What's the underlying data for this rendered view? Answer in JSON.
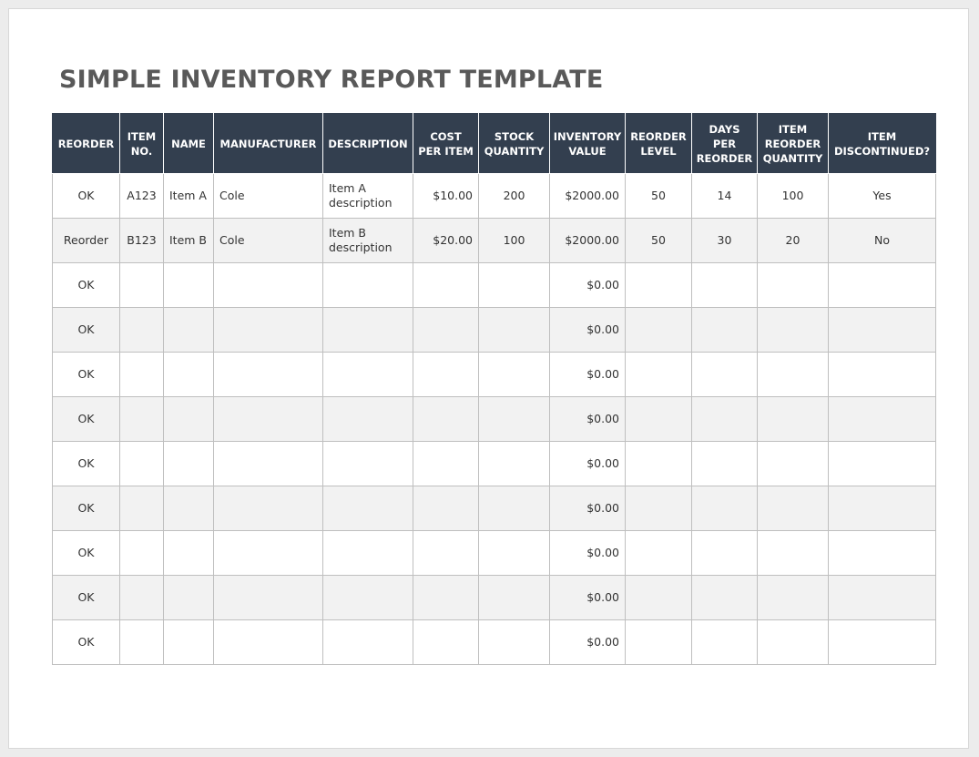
{
  "document": {
    "title": "SIMPLE INVENTORY REPORT TEMPLATE"
  },
  "colors": {
    "header_background": "#333f4f",
    "header_text": "#ffffff",
    "title_text": "#595959",
    "alternate_row": "#f2f2f2"
  },
  "table": {
    "headers": [
      [
        "REORDER"
      ],
      [
        "ITEM",
        "NO."
      ],
      [
        "NAME"
      ],
      [
        "MANUFACTURER"
      ],
      [
        "DESCRIPTION"
      ],
      [
        "COST",
        "PER ITEM"
      ],
      [
        "STOCK",
        "QUANTITY"
      ],
      [
        "INVENTORY",
        "VALUE"
      ],
      [
        "REORDER",
        "LEVEL"
      ],
      [
        "DAYS",
        "PER",
        "REORDER"
      ],
      [
        "ITEM",
        "REORDER",
        "QUANTITY"
      ],
      [
        "ITEM",
        "DISCONTINUED?"
      ]
    ],
    "rows": [
      [
        "OK",
        "A123",
        "Item A",
        "Cole",
        "Item A description",
        "$10.00",
        "200",
        "$2000.00",
        "50",
        "14",
        "100",
        "Yes"
      ],
      [
        "Reorder",
        "B123",
        "Item B",
        "Cole",
        "Item B description",
        "$20.00",
        "100",
        "$2000.00",
        "50",
        "30",
        "20",
        "No"
      ],
      [
        "OK",
        "",
        "",
        "",
        "",
        "",
        "",
        "$0.00",
        "",
        "",
        "",
        ""
      ],
      [
        "OK",
        "",
        "",
        "",
        "",
        "",
        "",
        "$0.00",
        "",
        "",
        "",
        ""
      ],
      [
        "OK",
        "",
        "",
        "",
        "",
        "",
        "",
        "$0.00",
        "",
        "",
        "",
        ""
      ],
      [
        "OK",
        "",
        "",
        "",
        "",
        "",
        "",
        "$0.00",
        "",
        "",
        "",
        ""
      ],
      [
        "OK",
        "",
        "",
        "",
        "",
        "",
        "",
        "$0.00",
        "",
        "",
        "",
        ""
      ],
      [
        "OK",
        "",
        "",
        "",
        "",
        "",
        "",
        "$0.00",
        "",
        "",
        "",
        ""
      ],
      [
        "OK",
        "",
        "",
        "",
        "",
        "",
        "",
        "$0.00",
        "",
        "",
        "",
        ""
      ],
      [
        "OK",
        "",
        "",
        "",
        "",
        "",
        "",
        "$0.00",
        "",
        "",
        "",
        ""
      ],
      [
        "OK",
        "",
        "",
        "",
        "",
        "",
        "",
        "$0.00",
        "",
        "",
        "",
        ""
      ]
    ]
  }
}
